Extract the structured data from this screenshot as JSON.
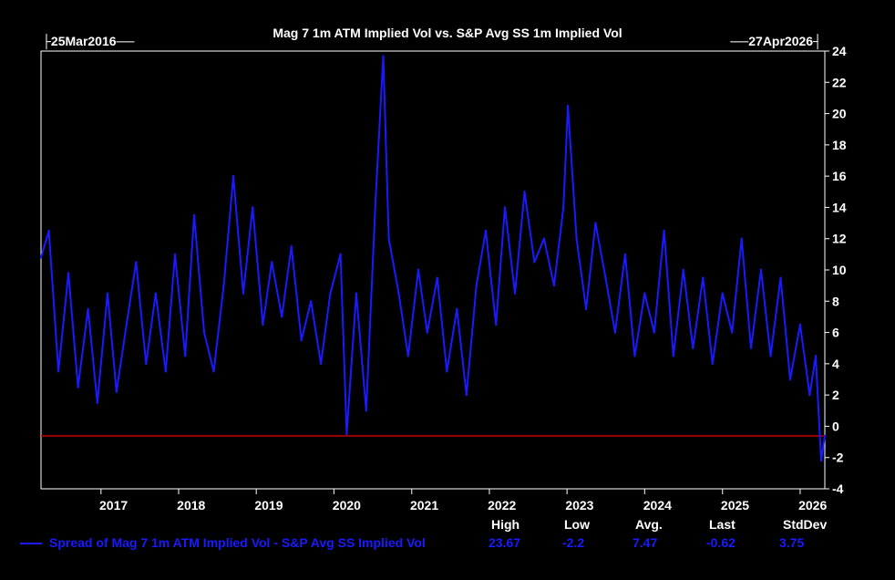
{
  "chart_data": {
    "type": "line",
    "title": "Mag 7 1m ATM Implied Vol vs. S&P Avg SS 1m Implied Vol",
    "start_date": "25Mar2016",
    "end_date": "27Apr2026",
    "ylim": [
      -4,
      24
    ],
    "y_ticks": [
      "24",
      "22",
      "20",
      "18",
      "16",
      "14",
      "12",
      "10",
      "8",
      "6",
      "4",
      "2",
      "0",
      "-2",
      "-4"
    ],
    "x_ticks": [
      "2017",
      "2018",
      "2019",
      "2020",
      "2021",
      "2022",
      "2023",
      "2024",
      "2025",
      "2026"
    ],
    "grid": false,
    "reference_line": {
      "value": -0.62,
      "color": "#cc0000"
    },
    "series": [
      {
        "name": "Spread of Mag 7 1m ATM Implied Vol - S&P Avg SS Implied Vol",
        "color": "#1a1aff",
        "x": [
          "2016-03-25",
          "2016-05-01",
          "2016-06-15",
          "2016-08-01",
          "2016-09-15",
          "2016-11-01",
          "2016-12-15",
          "2017-02-01",
          "2017-03-15",
          "2017-05-01",
          "2017-06-15",
          "2017-08-01",
          "2017-09-15",
          "2017-11-01",
          "2017-12-15",
          "2018-02-01",
          "2018-03-15",
          "2018-05-01",
          "2018-06-15",
          "2018-08-01",
          "2018-09-15",
          "2018-11-01",
          "2018-12-15",
          "2019-02-01",
          "2019-03-15",
          "2019-05-01",
          "2019-06-15",
          "2019-08-01",
          "2019-09-15",
          "2019-11-01",
          "2019-12-15",
          "2020-02-01",
          "2020-03-01",
          "2020-04-15",
          "2020-06-01",
          "2020-07-15",
          "2020-08-20",
          "2020-09-15",
          "2020-11-01",
          "2020-12-15",
          "2021-02-01",
          "2021-03-15",
          "2021-05-01",
          "2021-06-15",
          "2021-08-01",
          "2021-09-15",
          "2021-11-01",
          "2021-12-15",
          "2022-02-01",
          "2022-03-15",
          "2022-05-01",
          "2022-06-15",
          "2022-08-01",
          "2022-09-15",
          "2022-11-01",
          "2022-12-15",
          "2023-01-05",
          "2023-02-15",
          "2023-04-01",
          "2023-05-15",
          "2023-07-01",
          "2023-08-15",
          "2023-10-01",
          "2023-11-15",
          "2024-01-01",
          "2024-02-15",
          "2024-04-01",
          "2024-05-15",
          "2024-07-01",
          "2024-08-15",
          "2024-10-01",
          "2024-11-15",
          "2025-01-01",
          "2025-02-15",
          "2025-04-01",
          "2025-05-15",
          "2025-07-01",
          "2025-08-15",
          "2025-10-01",
          "2025-11-15",
          "2026-01-01",
          "2026-02-15",
          "2026-03-15",
          "2026-04-10",
          "2026-04-27"
        ],
        "values": [
          10.8,
          12.5,
          3.5,
          9.8,
          2.5,
          7.5,
          1.5,
          8.5,
          2.2,
          6.5,
          10.5,
          4.0,
          8.5,
          3.5,
          11.0,
          4.5,
          13.5,
          6.0,
          3.5,
          9.0,
          16.0,
          8.5,
          14.0,
          6.5,
          10.5,
          7.0,
          11.5,
          5.5,
          8.0,
          4.0,
          8.5,
          11.0,
          -0.5,
          8.5,
          1.0,
          14.5,
          23.67,
          12.0,
          8.5,
          4.5,
          10.0,
          6.0,
          9.5,
          3.5,
          7.5,
          2.0,
          9.0,
          12.5,
          6.5,
          14.0,
          8.5,
          15.0,
          10.5,
          12.0,
          9.0,
          14.0,
          20.5,
          12.0,
          7.5,
          13.0,
          9.5,
          6.0,
          11.0,
          4.5,
          8.5,
          6.0,
          12.5,
          4.5,
          10.0,
          5.0,
          9.5,
          4.0,
          8.5,
          6.0,
          12.0,
          5.0,
          10.0,
          4.5,
          9.5,
          3.0,
          6.5,
          2.0,
          4.5,
          -2.2,
          -0.62
        ]
      }
    ]
  },
  "stats": {
    "headers": [
      "High",
      "Low",
      "Avg.",
      "Last",
      "StdDev"
    ],
    "values": [
      "23.67",
      "-2.2",
      "7.47",
      "-0.62",
      "3.75"
    ]
  }
}
